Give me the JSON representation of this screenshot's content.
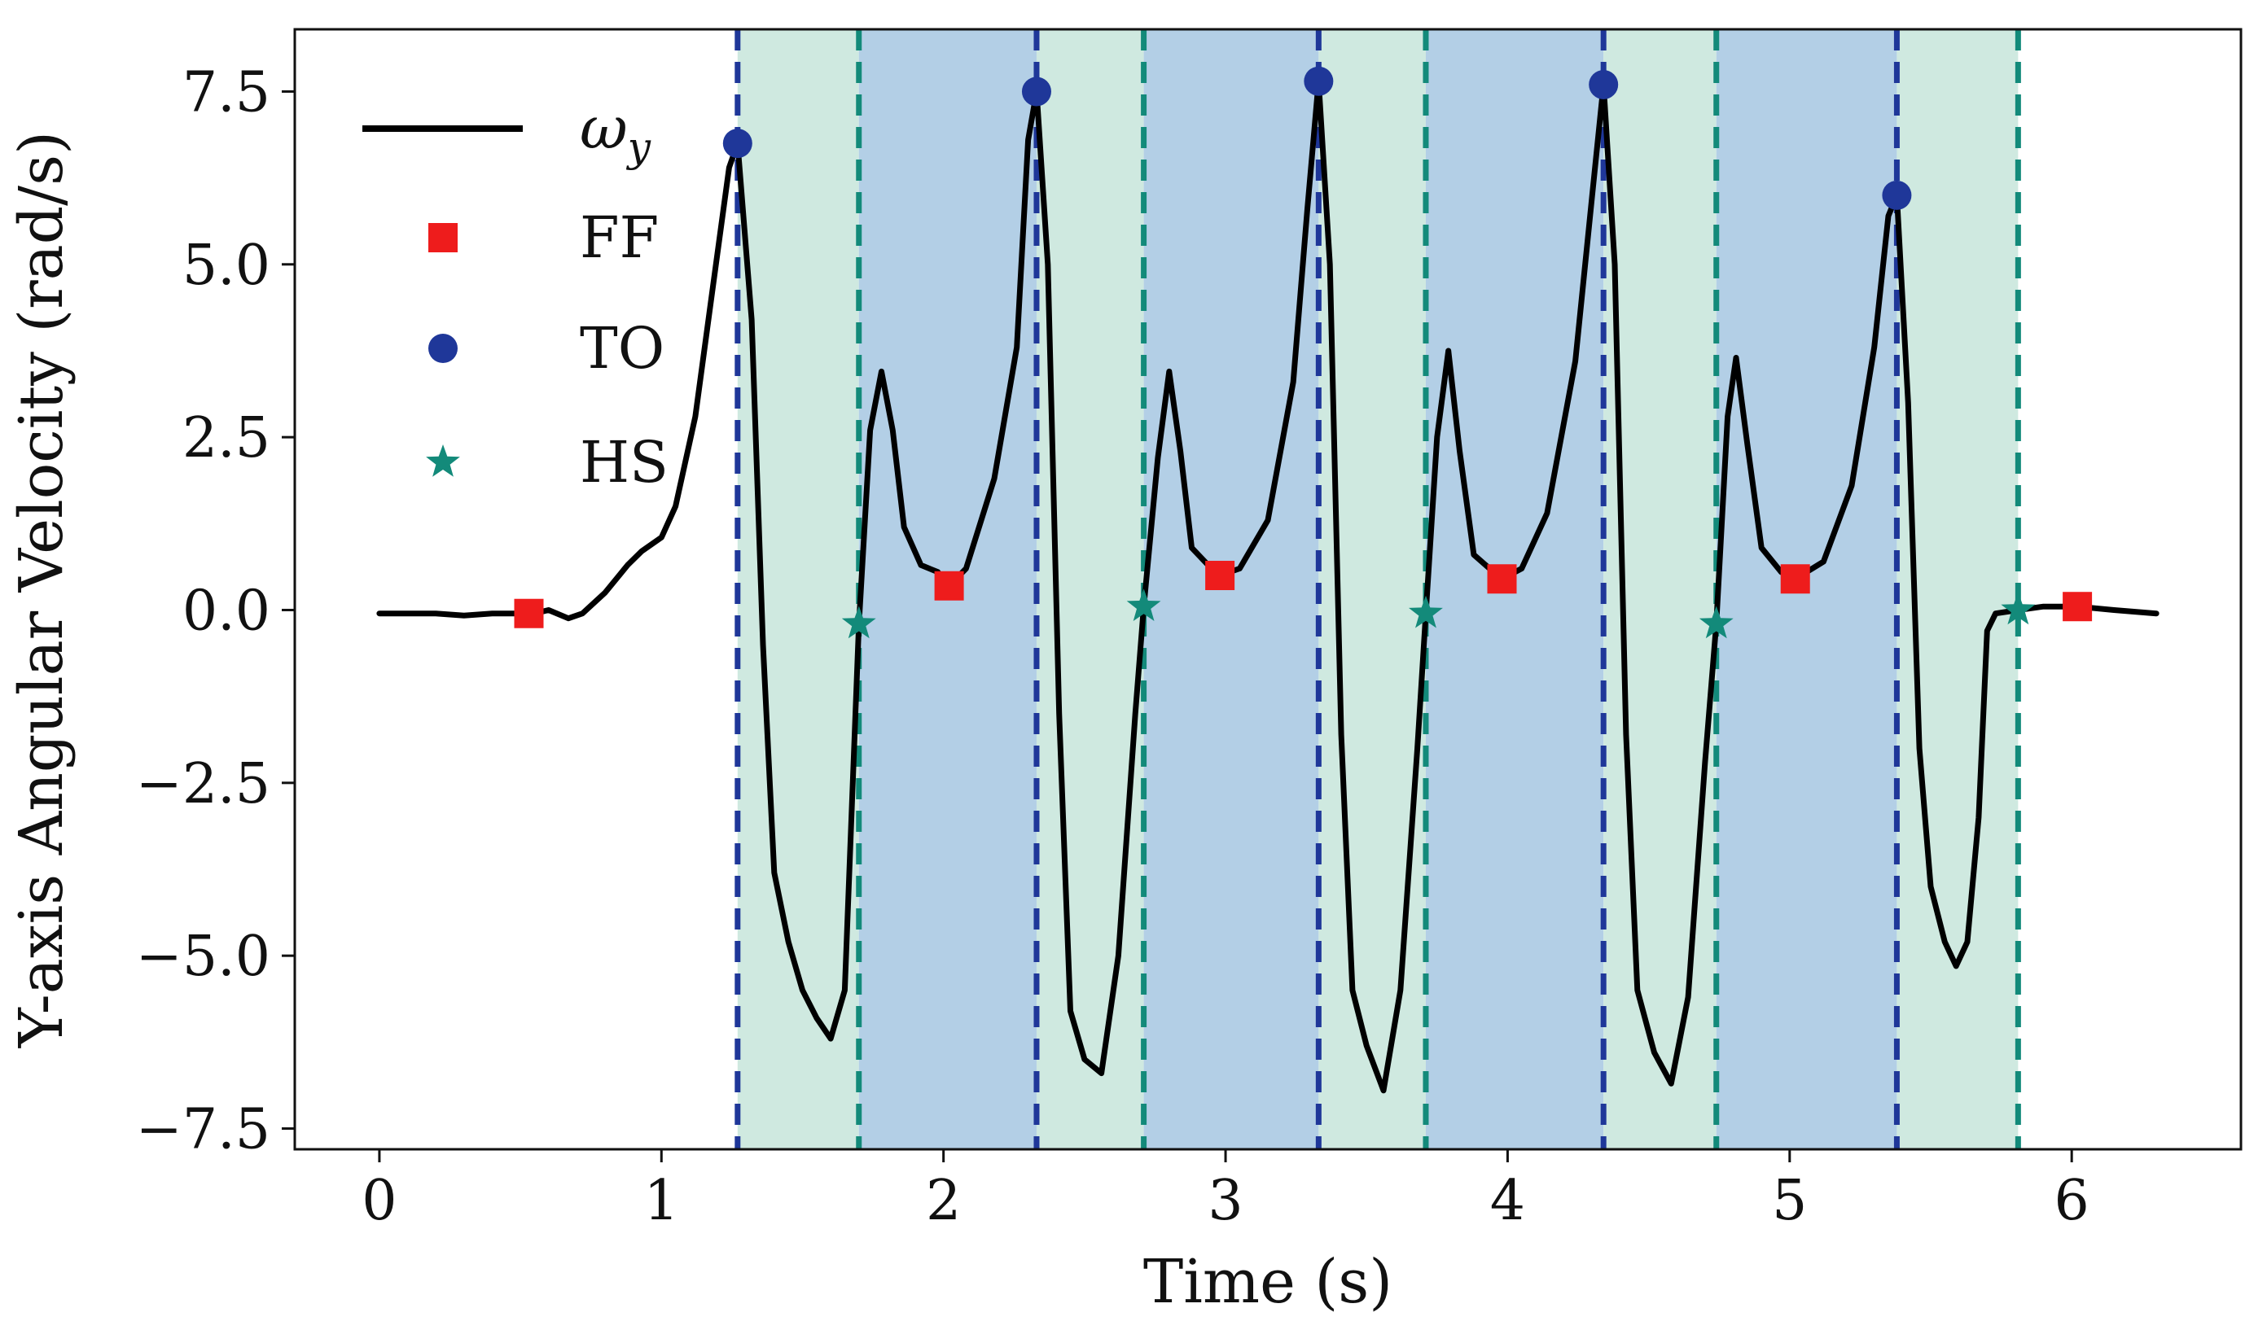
{
  "chart_data": {
    "type": "line",
    "title": "",
    "xlabel": "Time (s)",
    "ylabel": "Y-axis Angular Velocity (rad/s)",
    "xlim": [
      -0.3,
      6.6
    ],
    "ylim": [
      -7.8,
      8.4
    ],
    "x_ticks": [
      0,
      1,
      2,
      3,
      4,
      5,
      6
    ],
    "x_tick_labels": [
      "0",
      "1",
      "2",
      "3",
      "4",
      "5",
      "6"
    ],
    "y_ticks": [
      7.5,
      5.0,
      2.5,
      0.0,
      -2.5,
      -5.0,
      -7.5
    ],
    "y_tick_labels": [
      "7.5",
      "5.0",
      "2.5",
      "0.0",
      "−2.5",
      "−5.0",
      "−7.5"
    ],
    "grid": false,
    "legend_position": "top-left",
    "legend": [
      {
        "label": "ω",
        "subscript": "y",
        "kind": "line"
      },
      {
        "label": "FF",
        "kind": "square"
      },
      {
        "label": "TO",
        "kind": "circle"
      },
      {
        "label": "HS",
        "kind": "star"
      }
    ],
    "series": [
      {
        "name": "ω_y",
        "color": "#000000",
        "points": [
          [
            0.0,
            -0.05
          ],
          [
            0.2,
            -0.05
          ],
          [
            0.3,
            -0.08
          ],
          [
            0.4,
            -0.05
          ],
          [
            0.55,
            -0.05
          ],
          [
            0.6,
            0.0
          ],
          [
            0.67,
            -0.12
          ],
          [
            0.72,
            -0.05
          ],
          [
            0.8,
            0.25
          ],
          [
            0.88,
            0.65
          ],
          [
            0.93,
            0.85
          ],
          [
            1.0,
            1.05
          ],
          [
            1.05,
            1.5
          ],
          [
            1.12,
            2.8
          ],
          [
            1.18,
            4.6
          ],
          [
            1.24,
            6.4
          ],
          [
            1.27,
            6.75
          ],
          [
            1.32,
            4.2
          ],
          [
            1.36,
            -0.5
          ],
          [
            1.4,
            -3.8
          ],
          [
            1.45,
            -4.8
          ],
          [
            1.5,
            -5.5
          ],
          [
            1.55,
            -5.9
          ],
          [
            1.6,
            -6.2
          ],
          [
            1.65,
            -5.5
          ],
          [
            1.7,
            -0.2
          ],
          [
            1.74,
            2.6
          ],
          [
            1.78,
            3.45
          ],
          [
            1.82,
            2.6
          ],
          [
            1.86,
            1.2
          ],
          [
            1.92,
            0.65
          ],
          [
            1.98,
            0.55
          ],
          [
            2.02,
            0.35
          ],
          [
            2.08,
            0.6
          ],
          [
            2.18,
            1.9
          ],
          [
            2.26,
            3.8
          ],
          [
            2.3,
            6.8
          ],
          [
            2.33,
            7.5
          ],
          [
            2.37,
            5.0
          ],
          [
            2.41,
            -1.5
          ],
          [
            2.45,
            -5.8
          ],
          [
            2.5,
            -6.5
          ],
          [
            2.56,
            -6.7
          ],
          [
            2.62,
            -5.0
          ],
          [
            2.68,
            -1.5
          ],
          [
            2.71,
            0.05
          ],
          [
            2.76,
            2.2
          ],
          [
            2.8,
            3.45
          ],
          [
            2.84,
            2.3
          ],
          [
            2.88,
            0.9
          ],
          [
            2.95,
            0.6
          ],
          [
            2.98,
            0.5
          ],
          [
            3.05,
            0.6
          ],
          [
            3.15,
            1.3
          ],
          [
            3.24,
            3.3
          ],
          [
            3.29,
            5.8
          ],
          [
            3.33,
            7.65
          ],
          [
            3.37,
            5.0
          ],
          [
            3.41,
            -1.8
          ],
          [
            3.45,
            -5.5
          ],
          [
            3.5,
            -6.3
          ],
          [
            3.56,
            -6.95
          ],
          [
            3.62,
            -5.5
          ],
          [
            3.68,
            -2.0
          ],
          [
            3.71,
            -0.05
          ],
          [
            3.75,
            2.5
          ],
          [
            3.79,
            3.75
          ],
          [
            3.83,
            2.3
          ],
          [
            3.88,
            0.8
          ],
          [
            3.95,
            0.55
          ],
          [
            3.98,
            0.45
          ],
          [
            4.05,
            0.6
          ],
          [
            4.14,
            1.4
          ],
          [
            4.24,
            3.6
          ],
          [
            4.3,
            6.0
          ],
          [
            4.34,
            7.6
          ],
          [
            4.38,
            5.0
          ],
          [
            4.42,
            -1.8
          ],
          [
            4.46,
            -5.5
          ],
          [
            4.52,
            -6.4
          ],
          [
            4.58,
            -6.85
          ],
          [
            4.64,
            -5.6
          ],
          [
            4.7,
            -2.2
          ],
          [
            4.74,
            -0.2
          ],
          [
            4.78,
            2.8
          ],
          [
            4.81,
            3.65
          ],
          [
            4.85,
            2.4
          ],
          [
            4.9,
            0.9
          ],
          [
            4.97,
            0.55
          ],
          [
            5.02,
            0.45
          ],
          [
            5.12,
            0.7
          ],
          [
            5.22,
            1.8
          ],
          [
            5.3,
            3.8
          ],
          [
            5.35,
            5.7
          ],
          [
            5.38,
            6.0
          ],
          [
            5.42,
            3.0
          ],
          [
            5.46,
            -2.0
          ],
          [
            5.5,
            -4.0
          ],
          [
            5.55,
            -4.8
          ],
          [
            5.59,
            -5.15
          ],
          [
            5.63,
            -4.8
          ],
          [
            5.67,
            -3.0
          ],
          [
            5.7,
            -0.3
          ],
          [
            5.73,
            -0.05
          ],
          [
            5.81,
            0.0
          ],
          [
            5.9,
            0.05
          ],
          [
            6.02,
            0.05
          ],
          [
            6.15,
            0.0
          ],
          [
            6.3,
            -0.05
          ]
        ]
      }
    ],
    "events": {
      "FF": {
        "color": "#ee1c1c",
        "marker": "square",
        "points": [
          [
            0.53,
            -0.05
          ],
          [
            2.02,
            0.35
          ],
          [
            2.98,
            0.5
          ],
          [
            3.98,
            0.45
          ],
          [
            5.02,
            0.45
          ],
          [
            6.02,
            0.05
          ]
        ]
      },
      "TO": {
        "color": "#1f3799",
        "marker": "circle",
        "points": [
          [
            1.27,
            6.75
          ],
          [
            2.33,
            7.5
          ],
          [
            3.33,
            7.65
          ],
          [
            4.34,
            7.6
          ],
          [
            5.38,
            6.0
          ]
        ]
      },
      "HS": {
        "color": "#138a7a",
        "marker": "star",
        "points": [
          [
            1.7,
            -0.2
          ],
          [
            2.71,
            0.05
          ],
          [
            3.71,
            -0.05
          ],
          [
            4.74,
            -0.2
          ],
          [
            5.81,
            0.0
          ]
        ]
      }
    },
    "vertical_lines": [
      {
        "x": 1.27,
        "color": "#1f3799",
        "style": "dashed"
      },
      {
        "x": 1.7,
        "color": "#138a7a",
        "style": "dashed"
      },
      {
        "x": 2.33,
        "color": "#1f3799",
        "style": "dashed"
      },
      {
        "x": 2.71,
        "color": "#138a7a",
        "style": "dashed"
      },
      {
        "x": 3.33,
        "color": "#1f3799",
        "style": "dashed"
      },
      {
        "x": 3.71,
        "color": "#138a7a",
        "style": "dashed"
      },
      {
        "x": 4.34,
        "color": "#1f3799",
        "style": "dashed"
      },
      {
        "x": 4.74,
        "color": "#138a7a",
        "style": "dashed"
      },
      {
        "x": 5.38,
        "color": "#1f3799",
        "style": "dashed"
      },
      {
        "x": 5.81,
        "color": "#138a7a",
        "style": "dashed"
      }
    ],
    "shaded_regions": [
      {
        "x0": 1.27,
        "x1": 1.7,
        "color": "#cfe9e0"
      },
      {
        "x0": 1.7,
        "x1": 2.33,
        "color": "#b3cfe6"
      },
      {
        "x0": 2.33,
        "x1": 2.71,
        "color": "#cfe9e0"
      },
      {
        "x0": 2.71,
        "x1": 3.33,
        "color": "#b3cfe6"
      },
      {
        "x0": 3.33,
        "x1": 3.71,
        "color": "#cfe9e0"
      },
      {
        "x0": 3.71,
        "x1": 4.34,
        "color": "#b3cfe6"
      },
      {
        "x0": 4.34,
        "x1": 4.74,
        "color": "#cfe9e0"
      },
      {
        "x0": 4.74,
        "x1": 5.38,
        "color": "#b3cfe6"
      },
      {
        "x0": 5.38,
        "x1": 5.81,
        "color": "#cfe9e0"
      }
    ]
  }
}
